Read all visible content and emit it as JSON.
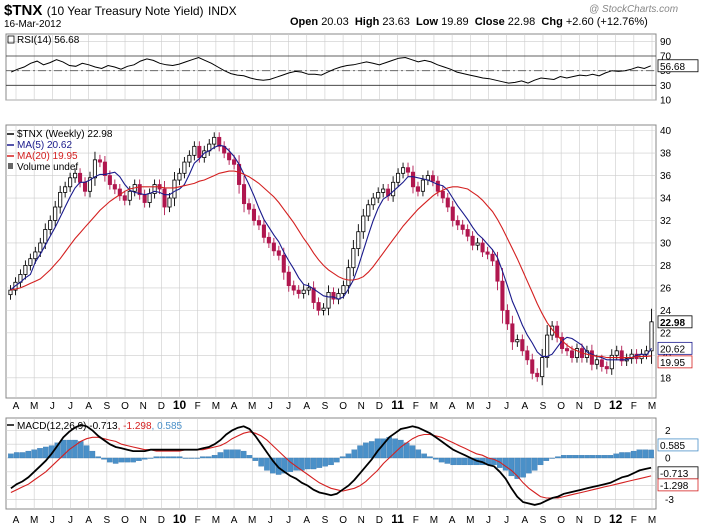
{
  "header": {
    "symbol": "$TNX",
    "name": "(10 Year Treasury Note Yield)",
    "exchange": "INDX",
    "date": "16-Mar-2012",
    "open_label": "Open",
    "open": "20.03",
    "high_label": "High",
    "high": "23.63",
    "low_label": "Low",
    "low": "19.89",
    "close_label": "Close",
    "close": "22.98",
    "change_label": "Chg",
    "change": "+2.60 (+12.76%)",
    "watermark": "@ StockCharts.com"
  },
  "colors": {
    "up": "#000000",
    "down": "#b0174f",
    "ma5": "#1a1a8c",
    "ma20": "#d42020",
    "macd_line": "#000000",
    "signal_line": "#d42020",
    "histogram": "#4a90c8",
    "grid": "#cccccc"
  },
  "chart_data": [
    {
      "type": "line",
      "panel": "rsi",
      "legend": "RSI(14) 56.68",
      "ylim": [
        10,
        100
      ],
      "yticks": [
        90,
        70,
        50,
        30
      ],
      "yticks_extra": [
        10
      ],
      "reference_lines": [
        70,
        30
      ],
      "last_value_label": "56.68",
      "series": [
        {
          "name": "RSI(14)",
          "values": [
            48,
            52,
            55,
            60,
            63,
            58,
            61,
            65,
            62,
            57,
            56,
            60,
            58,
            55,
            53,
            57,
            55,
            52,
            56,
            58,
            63,
            66,
            64,
            60,
            58,
            57,
            59,
            62,
            65,
            68,
            64,
            60,
            55,
            50,
            46,
            44,
            43,
            40,
            38,
            37,
            38,
            41,
            44,
            47,
            49,
            48,
            45,
            45,
            44,
            48,
            52,
            55,
            57,
            58,
            60,
            62,
            60,
            58,
            61,
            64,
            67,
            68,
            65,
            62,
            64,
            62,
            58,
            55,
            52,
            48,
            46,
            44,
            42,
            40,
            39,
            37,
            35,
            33,
            34,
            36,
            33,
            37,
            40,
            39,
            38,
            42,
            40,
            42,
            44,
            43,
            45,
            43,
            47,
            50,
            49,
            50,
            52,
            55,
            53,
            56.68
          ]
        }
      ]
    },
    {
      "type": "candlestick",
      "panel": "price",
      "legend": [
        "$TNX (Weekly) 22.98",
        "MA(5) 20.62",
        "MA(20) 19.95",
        "Volume undef"
      ],
      "ylim": [
        16.2,
        40.5
      ],
      "yticks": [
        40,
        38,
        36,
        34,
        32,
        30,
        28,
        26,
        24,
        22,
        20,
        18
      ],
      "last_labels": {
        "close": "22.98",
        "ma5": "20.62",
        "ma20": "19.95"
      },
      "close": [
        25.8,
        26.5,
        27.2,
        28.0,
        28.6,
        29.2,
        30.0,
        31.2,
        32.0,
        33.2,
        34.5,
        35.0,
        35.8,
        36.2,
        35.4,
        34.6,
        35.8,
        37.4,
        37.2,
        36.0,
        35.2,
        34.8,
        34.2,
        33.8,
        34.6,
        35.2,
        34.3,
        33.6,
        34.4,
        35.2,
        34.8,
        33.2,
        34.0,
        35.6,
        36.2,
        37.2,
        37.8,
        38.6,
        37.6,
        38.2,
        38.8,
        39.4,
        38.6,
        38.0,
        37.4,
        37.0,
        35.2,
        33.5,
        33.0,
        32.0,
        31.6,
        30.5,
        30.0,
        29.3,
        28.9,
        27.4,
        26.2,
        25.8,
        25.5,
        25.8,
        26.0,
        24.7,
        24.0,
        24.2,
        25.6,
        25.0,
        25.5,
        26.2,
        27.8,
        29.5,
        31.0,
        32.4,
        33.4,
        34.0,
        34.5,
        34.8,
        34.2,
        35.4,
        36.2,
        36.7,
        36.3,
        35.0,
        34.6,
        35.6,
        36.0,
        35.5,
        34.6,
        34.0,
        33.2,
        32.0,
        31.6,
        31.2,
        30.6,
        29.8,
        30.0,
        29.2,
        29.0,
        28.4,
        26.6,
        24.0,
        22.8,
        21.2,
        21.4,
        20.4,
        19.6,
        18.4,
        18.1,
        19.8,
        21.8,
        22.6,
        21.6,
        20.6,
        20.4,
        19.8,
        20.6,
        19.8,
        20.4,
        19.2,
        19.6,
        19.0,
        18.8,
        20.0,
        20.4,
        19.5,
        19.7,
        20.1,
        19.7,
        20.1,
        20.4,
        22.98
      ],
      "series": [
        {
          "name": "MA(5)",
          "values": [
            25.8,
            26.2,
            26.5,
            26.9,
            27.2,
            28.3,
            29.0,
            29.8,
            30.6,
            31.4,
            32.3,
            33.2,
            34.1,
            34.9,
            35.4,
            35.4,
            35.6,
            35.9,
            36.1,
            36.1,
            36.2,
            36.3,
            35.9,
            35.2,
            34.7,
            34.5,
            34.4,
            34.3,
            34.4,
            34.6,
            34.5,
            34.3,
            34.3,
            34.6,
            34.8,
            35.2,
            36.1,
            37.1,
            37.5,
            38.0,
            38.2,
            38.5,
            38.7,
            38.6,
            38.2,
            37.7,
            37.0,
            36.1,
            35.2,
            34.2,
            33.1,
            32.1,
            31.4,
            30.7,
            30.1,
            29.2,
            28.4,
            27.7,
            26.9,
            26.3,
            26.2,
            25.9,
            25.6,
            25.3,
            25.2,
            25.2,
            25.0,
            25.2,
            25.9,
            26.7,
            27.9,
            29.3,
            30.7,
            32.0,
            33.1,
            33.9,
            34.2,
            34.6,
            35.0,
            35.4,
            35.9,
            35.9,
            35.8,
            35.7,
            35.6,
            35.4,
            35.2,
            35.1,
            34.7,
            34.0,
            33.3,
            32.7,
            32.1,
            31.4,
            30.8,
            30.4,
            29.9,
            29.4,
            28.7,
            27.5,
            26.2,
            24.8,
            23.8,
            22.7,
            21.8,
            21.1,
            20.3,
            19.9,
            19.9,
            20.1,
            20.7,
            21.3,
            21.6,
            21.5,
            21.2,
            20.9,
            20.3,
            20.1,
            19.9,
            19.8,
            19.6,
            19.6,
            19.6,
            19.6,
            19.6,
            19.8,
            20.0,
            20.1,
            20.0,
            20.62
          ]
        },
        {
          "name": "MA(20)",
          "values": [
            25.8,
            25.9,
            26.0,
            26.2,
            26.4,
            26.6,
            26.8,
            27.2,
            27.6,
            28.1,
            28.6,
            29.2,
            29.8,
            30.4,
            30.9,
            31.4,
            31.9,
            32.4,
            32.9,
            33.3,
            33.7,
            34.0,
            34.3,
            34.6,
            34.8,
            34.9,
            35.0,
            35.0,
            35.0,
            35.0,
            35.0,
            34.9,
            34.9,
            34.9,
            35.0,
            35.1,
            35.2,
            35.3,
            35.5,
            35.6,
            35.8,
            36.0,
            36.2,
            36.3,
            36.4,
            36.4,
            36.3,
            36.1,
            35.9,
            35.6,
            35.3,
            34.9,
            34.5,
            34.1,
            33.6,
            33.0,
            32.4,
            31.8,
            31.1,
            30.4,
            29.8,
            29.1,
            28.5,
            28.0,
            27.6,
            27.3,
            27.0,
            26.8,
            26.7,
            26.7,
            26.8,
            27.0,
            27.4,
            27.9,
            28.5,
            29.1,
            29.7,
            30.3,
            30.9,
            31.5,
            32.0,
            32.5,
            33.0,
            33.4,
            33.8,
            34.2,
            34.5,
            34.7,
            34.9,
            35.0,
            35.0,
            34.9,
            34.8,
            34.5,
            34.2,
            33.8,
            33.3,
            32.8,
            32.1,
            31.3,
            30.4,
            29.5,
            28.6,
            27.6,
            26.6,
            25.6,
            24.6,
            23.7,
            22.9,
            22.3,
            21.8,
            21.3,
            20.9,
            20.6,
            20.4,
            20.2,
            20.1,
            20.0,
            19.9,
            19.9,
            19.8,
            19.8,
            19.8,
            19.8,
            19.8,
            19.8,
            19.9,
            19.9,
            19.9,
            19.95
          ]
        }
      ]
    },
    {
      "type": "line",
      "panel": "macd",
      "legend": [
        "MACD(12,26,9)",
        "-0.713",
        "-1.298",
        "0.585"
      ],
      "ylim": [
        -3.7,
        2.9
      ],
      "yticks": [
        2,
        1,
        0,
        -1,
        -2,
        -3
      ],
      "last_labels": {
        "histogram": "0.585",
        "macd": "-0.713",
        "signal": "-1.298"
      },
      "series": [
        {
          "name": "MACD",
          "values": [
            -2.2,
            -1.9,
            -1.7,
            -1.4,
            -1.0,
            -0.6,
            -0.2,
            0.3,
            0.9,
            1.5,
            1.9,
            2.2,
            2.4,
            2.3,
            2.0,
            1.6,
            1.3,
            1.0,
            0.8,
            0.7,
            0.6,
            0.5,
            0.5,
            0.5,
            0.6,
            0.6,
            0.6,
            0.6,
            0.6,
            0.6,
            0.6,
            0.6,
            0.6,
            0.7,
            0.8,
            1.0,
            1.3,
            1.7,
            2.0,
            2.2,
            2.3,
            2.1,
            1.6,
            1.0,
            0.4,
            -0.2,
            -0.7,
            -1.0,
            -1.3,
            -1.5,
            -1.8,
            -2.0,
            -2.3,
            -2.5,
            -2.6,
            -2.7,
            -2.6,
            -2.3,
            -2.0,
            -1.6,
            -1.1,
            -0.6,
            -0.1,
            0.5,
            1.0,
            1.5,
            1.8,
            2.1,
            2.2,
            2.3,
            2.2,
            2.0,
            1.8,
            1.5,
            1.2,
            0.9,
            0.6,
            0.4,
            0.2,
            0.0,
            -0.2,
            -0.3,
            -0.5,
            -0.6,
            -1.0,
            -1.5,
            -2.2,
            -2.8,
            -3.2,
            -3.3,
            -3.4,
            -3.3,
            -3.1,
            -2.9,
            -2.8,
            -2.6,
            -2.5,
            -2.4,
            -2.3,
            -2.2,
            -2.1,
            -2.0,
            -1.9,
            -1.8,
            -1.6,
            -1.4,
            -1.3,
            -1.1,
            -0.9,
            -0.8,
            -0.713
          ]
        },
        {
          "name": "Signal",
          "values": [
            -2.5,
            -2.3,
            -2.1,
            -1.9,
            -1.6,
            -1.3,
            -1.0,
            -0.6,
            -0.2,
            0.2,
            0.6,
            0.9,
            1.2,
            1.4,
            1.5,
            1.5,
            1.4,
            1.3,
            1.2,
            1.0,
            0.9,
            0.8,
            0.7,
            0.6,
            0.6,
            0.5,
            0.5,
            0.5,
            0.5,
            0.5,
            0.6,
            0.6,
            0.6,
            0.6,
            0.7,
            0.8,
            0.9,
            1.1,
            1.4,
            1.6,
            1.8,
            1.9,
            1.8,
            1.6,
            1.3,
            0.9,
            0.5,
            0.1,
            -0.3,
            -0.6,
            -0.9,
            -1.2,
            -1.5,
            -1.8,
            -2.0,
            -2.2,
            -2.3,
            -2.4,
            -2.3,
            -2.2,
            -2.0,
            -1.7,
            -1.3,
            -0.9,
            -0.4,
            0.0,
            0.4,
            0.8,
            1.1,
            1.4,
            1.6,
            1.7,
            1.7,
            1.6,
            1.5,
            1.3,
            1.1,
            0.9,
            0.7,
            0.5,
            0.3,
            0.2,
            0.0,
            -0.1,
            -0.3,
            -0.6,
            -0.9,
            -1.3,
            -1.8,
            -2.2,
            -2.5,
            -2.8,
            -2.9,
            -2.9,
            -2.9,
            -2.8,
            -2.7,
            -2.6,
            -2.5,
            -2.4,
            -2.3,
            -2.2,
            -2.1,
            -2.0,
            -1.9,
            -1.8,
            -1.7,
            -1.6,
            -1.5,
            -1.4,
            -1.298
          ]
        }
      ]
    }
  ],
  "x_axis": {
    "labels": [
      "A",
      "M",
      "J",
      "J",
      "A",
      "S",
      "O",
      "N",
      "D",
      "10",
      "F",
      "M",
      "A",
      "M",
      "J",
      "J",
      "A",
      "S",
      "O",
      "N",
      "D",
      "11",
      "F",
      "M",
      "A",
      "M",
      "J",
      "J",
      "A",
      "S",
      "O",
      "N",
      "D",
      "12",
      "F",
      "M"
    ],
    "bold_labels": [
      "10",
      "11",
      "12"
    ]
  }
}
